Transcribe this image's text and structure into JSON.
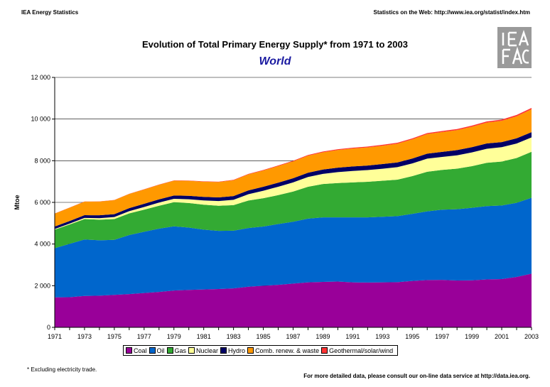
{
  "header": {
    "left": "IEA Energy Statistics",
    "right": "Statistics on the Web: http://www.iea.org/statist/index.htm"
  },
  "footer": {
    "note": "* Excluding electricity trade.",
    "link": "For more detailed data, please consult our on-line data service at http://data.iea.org."
  },
  "logo": {
    "text": "IEA"
  },
  "chart_data": {
    "type": "area",
    "stacked": true,
    "title": "Evolution of Total Primary Energy Supply* from 1971 to 2003",
    "subtitle": "World",
    "ylabel": "Mtoe",
    "xlabel": "",
    "ylim": [
      0,
      12000
    ],
    "yticks": [
      0,
      2000,
      4000,
      6000,
      8000,
      10000,
      12000
    ],
    "ytick_labels": [
      "0",
      "2 000",
      "4 000",
      "6 000",
      "8 000",
      "10 000",
      "12 000"
    ],
    "xtick_labels": [
      "1971",
      "1973",
      "1975",
      "1977",
      "1979",
      "1981",
      "1983",
      "1985",
      "1987",
      "1989",
      "1991",
      "1993",
      "1995",
      "1997",
      "1999",
      "2001",
      "2003"
    ],
    "x": [
      1971,
      1972,
      1973,
      1974,
      1975,
      1976,
      1977,
      1978,
      1979,
      1980,
      1981,
      1982,
      1983,
      1984,
      1985,
      1986,
      1987,
      1988,
      1989,
      1990,
      1991,
      1992,
      1993,
      1994,
      1995,
      1996,
      1997,
      1998,
      1999,
      2000,
      2001,
      2002,
      2003
    ],
    "grid": "horizontal",
    "legend_position": "bottom",
    "series": [
      {
        "name": "Coal",
        "color": "#990099",
        "values": [
          1440,
          1450,
          1510,
          1520,
          1560,
          1600,
          1650,
          1700,
          1770,
          1800,
          1820,
          1840,
          1870,
          1950,
          2000,
          2040,
          2100,
          2160,
          2180,
          2200,
          2160,
          2150,
          2160,
          2170,
          2230,
          2270,
          2280,
          2250,
          2260,
          2300,
          2320,
          2420,
          2580
        ]
      },
      {
        "name": "Oil",
        "color": "#0066cc",
        "values": [
          2360,
          2560,
          2710,
          2660,
          2640,
          2830,
          2940,
          3040,
          3080,
          2990,
          2870,
          2790,
          2770,
          2820,
          2840,
          2920,
          2970,
          3060,
          3100,
          3080,
          3120,
          3130,
          3150,
          3170,
          3220,
          3300,
          3370,
          3420,
          3480,
          3520,
          3530,
          3560,
          3640
        ]
      },
      {
        "name": "Gas",
        "color": "#33aa33",
        "values": [
          890,
          930,
          980,
          990,
          1000,
          1040,
          1060,
          1100,
          1160,
          1180,
          1200,
          1210,
          1230,
          1320,
          1360,
          1390,
          1450,
          1530,
          1600,
          1650,
          1680,
          1710,
          1730,
          1750,
          1810,
          1900,
          1910,
          1950,
          2000,
          2080,
          2110,
          2150,
          2210
        ]
      },
      {
        "name": "Nuclear",
        "color": "#ffff99",
        "values": [
          30,
          40,
          55,
          70,
          95,
          110,
          130,
          150,
          160,
          180,
          205,
          225,
          255,
          300,
          360,
          400,
          440,
          470,
          490,
          525,
          550,
          560,
          575,
          600,
          610,
          630,
          620,
          640,
          660,
          675,
          690,
          695,
          690
        ]
      },
      {
        "name": "Hydro",
        "color": "#000066",
        "values": [
          120,
          125,
          130,
          140,
          140,
          145,
          150,
          155,
          160,
          165,
          170,
          172,
          178,
          185,
          190,
          195,
          198,
          202,
          205,
          210,
          215,
          218,
          225,
          228,
          235,
          240,
          245,
          248,
          250,
          255,
          245,
          250,
          250
        ]
      },
      {
        "name": "Comb. renew. & waste",
        "color": "#ff9900",
        "values": [
          620,
          640,
          650,
          660,
          670,
          680,
          690,
          700,
          710,
          720,
          730,
          740,
          760,
          770,
          780,
          800,
          810,
          820,
          830,
          850,
          860,
          870,
          880,
          900,
          920,
          940,
          950,
          960,
          980,
          1000,
          1020,
          1060,
          1100
        ]
      },
      {
        "name": "Geothermal/solar/wind",
        "color": "#ff3333",
        "values": [
          6,
          7,
          7,
          8,
          9,
          10,
          11,
          12,
          13,
          14,
          16,
          18,
          20,
          22,
          25,
          27,
          30,
          32,
          35,
          38,
          40,
          42,
          44,
          46,
          48,
          50,
          52,
          54,
          56,
          58,
          60,
          62,
          65
        ]
      }
    ]
  }
}
